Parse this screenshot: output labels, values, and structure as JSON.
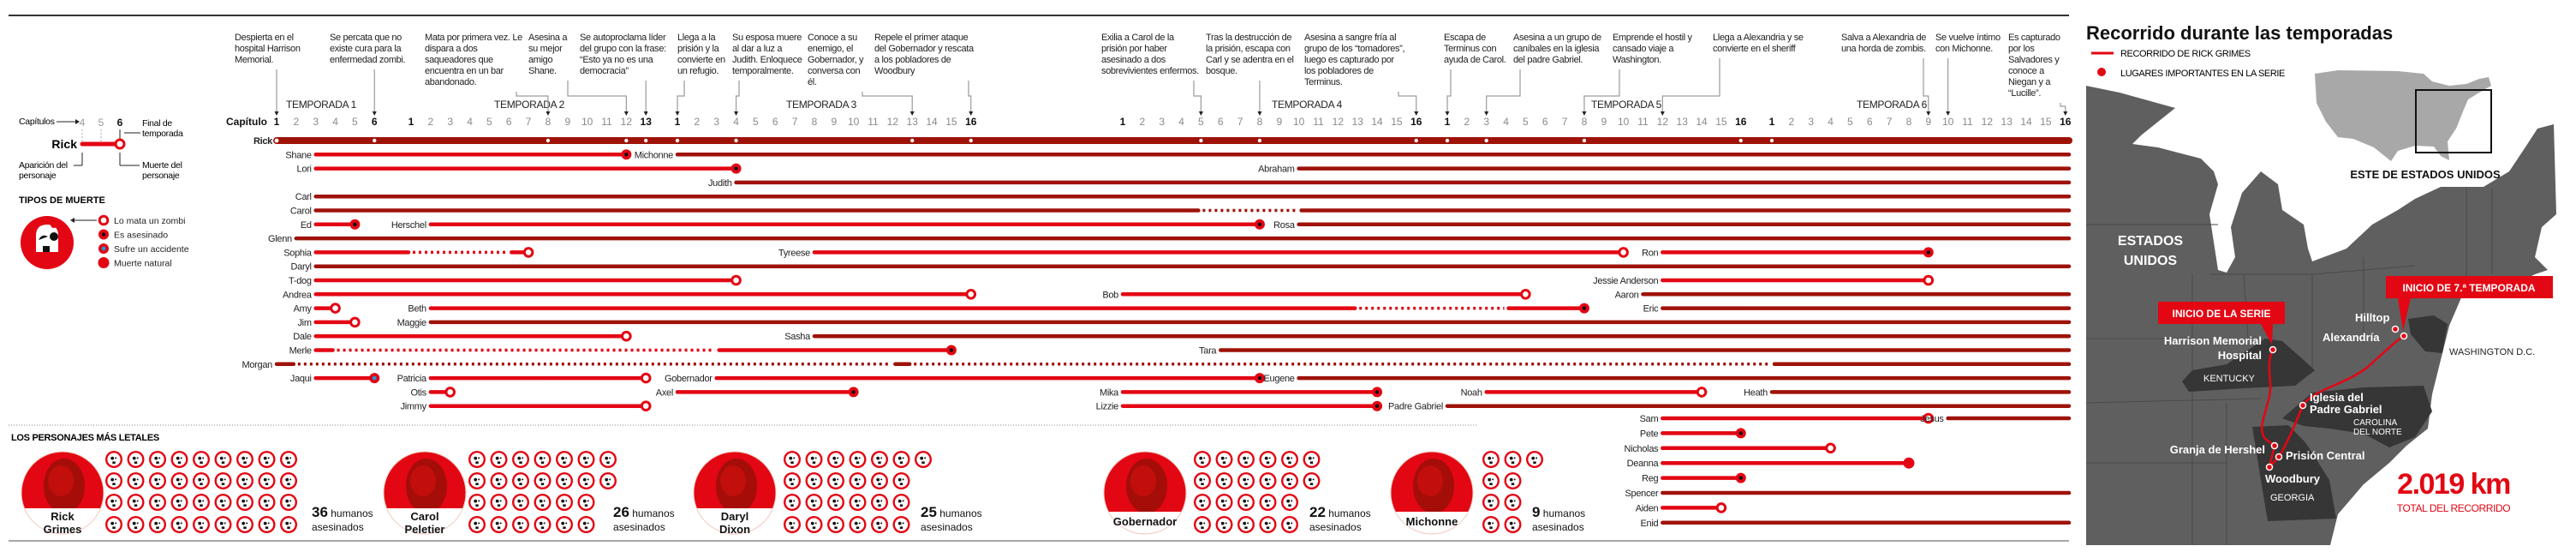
{
  "episode_axis_label": "Capítulo",
  "seasons": [
    {
      "label": "TEMPORADA 1",
      "episodes": 6
    },
    {
      "label": "TEMPORADA 2",
      "episodes": 13
    },
    {
      "label": "TEMPORADA 3",
      "episodes": 16
    },
    {
      "label": "TEMPORADA 4",
      "episodes": 16
    },
    {
      "label": "TEMPORADA 5",
      "episodes": 16
    },
    {
      "label": "TEMPORADA 6",
      "episodes": 16
    }
  ],
  "annotations": [
    {
      "text": "Despierta en el hospital Harrison Memorial.",
      "season": 1,
      "episode": 1
    },
    {
      "text": "Se percata que no existe cura para la enfermedad zombi.",
      "season": 1,
      "episode": 6
    },
    {
      "text": "Mata por primera vez. Le dispara a dos saqueadores que encuentra en un bar abandonado.",
      "season": 2,
      "episode": 8
    },
    {
      "text": "Asesina a su mejor amigo Shane.",
      "season": 2,
      "episode": 12
    },
    {
      "text": "Se autoproclama líder del grupo con la frase: “Esto ya no es una democracia”",
      "season": 2,
      "episode": 13
    },
    {
      "text": "Llega a la prisión y la convierte en un refugio.",
      "season": 3,
      "episode": 1
    },
    {
      "text": "Su esposa muere al dar a luz a Judith. Enloquece temporalmente.",
      "season": 3,
      "episode": 4
    },
    {
      "text": "Conoce a su enemigo, el Gobernador, y conversa con él.",
      "season": 3,
      "episode": 13
    },
    {
      "text": "Repele el primer ataque del Gobernador y rescata a los pobladores de Woodbury",
      "season": 3,
      "episode": 16
    },
    {
      "text": "Exilia a Carol de la prisión por haber asesinado a dos sobrevivientes enfermos.",
      "season": 4,
      "episode": 5
    },
    {
      "text": "Tras la destrucción de la prisión, escapa con Carl y se adentra en el bosque.",
      "season": 4,
      "episode": 8
    },
    {
      "text": "Asesina a sangre fría al grupo de los “tomadores”, luego es capturado por los pobladores de Terminus.",
      "season": 4,
      "episode": 16
    },
    {
      "text": "Escapa de Terminus con ayuda de Carol.",
      "season": 5,
      "episode": 1
    },
    {
      "text": "Asesina a un grupo de caníbales en la iglesia del padre Gabriel.",
      "season": 5,
      "episode": 3
    },
    {
      "text": "Emprende el hostil y cansado viaje a Washington.",
      "season": 5,
      "episode": 8
    },
    {
      "text": "Llega a Alexandria y se convierte en el sheriff",
      "season": 5,
      "episode": 12
    },
    {
      "text": "Salva a Alexandria de una horda de zombis.",
      "season": 6,
      "episode": 9
    },
    {
      "text": "Se vuelve íntimo con Michonne.",
      "season": 6,
      "episode": 10
    },
    {
      "text": "Es capturado por los Salvadores y conoce a Niegan y a “Lucille”.",
      "season": 6,
      "episode": 16
    }
  ],
  "rick_event_dots": [
    [
      1,
      6
    ],
    [
      2,
      8
    ],
    [
      2,
      12
    ],
    [
      2,
      13
    ],
    [
      3,
      1
    ],
    [
      3,
      4
    ],
    [
      3,
      13
    ],
    [
      3,
      16
    ],
    [
      4,
      5
    ],
    [
      4,
      8
    ],
    [
      4,
      16
    ],
    [
      5,
      1
    ],
    [
      5,
      3
    ],
    [
      5,
      8
    ],
    [
      5,
      16
    ],
    [
      6,
      1
    ]
  ],
  "characters": [
    {
      "name": "Rick",
      "row": 0,
      "start": [
        1,
        1
      ],
      "end": null,
      "death": null,
      "main": true
    },
    {
      "name": "Shane",
      "row": 1,
      "start": [
        1,
        3
      ],
      "end": [
        2,
        12
      ],
      "death": "asesinado"
    },
    {
      "name": "Michonne",
      "row": 1,
      "start": [
        3,
        1
      ],
      "end": null,
      "death": null
    },
    {
      "name": "Lori",
      "row": 2,
      "start": [
        1,
        3
      ],
      "end": [
        3,
        4
      ],
      "death": "asesinado"
    },
    {
      "name": "Abraham",
      "row": 2,
      "start": [
        4,
        10
      ],
      "end": null,
      "death": null
    },
    {
      "name": "Judith",
      "row": 3,
      "start": [
        3,
        4
      ],
      "end": null,
      "death": null
    },
    {
      "name": "Carl",
      "row": 4,
      "start": [
        1,
        3
      ],
      "end": null,
      "death": null
    },
    {
      "name": "Carol",
      "row": 5,
      "start": [
        1,
        3
      ],
      "end": null,
      "death": null,
      "gaps": [
        [
          [
            4,
            5
          ],
          [
            4,
            10
          ]
        ]
      ]
    },
    {
      "name": "Ed",
      "row": 6,
      "start": [
        1,
        3
      ],
      "end": [
        1,
        5
      ],
      "death": "asesinado"
    },
    {
      "name": "Herschel",
      "row": 6,
      "start": [
        2,
        2
      ],
      "end": [
        4,
        8
      ],
      "death": "asesinado"
    },
    {
      "name": "Rosa",
      "row": 6,
      "start": [
        4,
        10
      ],
      "end": null,
      "death": null
    },
    {
      "name": "Glenn",
      "row": 7,
      "start": [
        1,
        2
      ],
      "end": null,
      "death": null
    },
    {
      "name": "Sophia",
      "row": 8,
      "start": [
        1,
        3
      ],
      "end": [
        2,
        7
      ],
      "death": "zombi",
      "gaps": [
        [
          [
            2,
            1
          ],
          [
            2,
            6
          ]
        ]
      ]
    },
    {
      "name": "Tyreese",
      "row": 8,
      "start": [
        3,
        8
      ],
      "end": [
        5,
        10
      ],
      "death": "zombi"
    },
    {
      "name": "Ron",
      "row": 8,
      "start": [
        5,
        12
      ],
      "end": [
        6,
        9
      ],
      "death": "asesinado"
    },
    {
      "name": "Daryl",
      "row": 9,
      "start": [
        1,
        3
      ],
      "end": null,
      "death": null
    },
    {
      "name": "T-dog",
      "row": 10,
      "start": [
        1,
        3
      ],
      "end": [
        3,
        4
      ],
      "death": "zombi"
    },
    {
      "name": "Jessie Anderson",
      "row": 10,
      "start": [
        5,
        12
      ],
      "end": [
        6,
        9
      ],
      "death": "zombi"
    },
    {
      "name": "Andrea",
      "row": 11,
      "start": [
        1,
        3
      ],
      "end": [
        3,
        16
      ],
      "death": "zombi"
    },
    {
      "name": "Bob",
      "row": 11,
      "start": [
        4,
        1
      ],
      "end": [
        5,
        5
      ],
      "death": "zombi"
    },
    {
      "name": "Aaron",
      "row": 11,
      "start": [
        5,
        11
      ],
      "end": null,
      "death": null
    },
    {
      "name": "Amy",
      "row": 12,
      "start": [
        1,
        3
      ],
      "end": [
        1,
        4
      ],
      "death": "zombi"
    },
    {
      "name": "Beth",
      "row": 12,
      "start": [
        2,
        2
      ],
      "end": [
        5,
        8
      ],
      "death": "asesinado",
      "gaps": [
        [
          [
            4,
            13
          ],
          [
            5,
            4
          ]
        ]
      ]
    },
    {
      "name": "Eric",
      "row": 12,
      "start": [
        5,
        12
      ],
      "end": null,
      "death": null
    },
    {
      "name": "Jim",
      "row": 13,
      "start": [
        1,
        3
      ],
      "end": [
        1,
        5
      ],
      "death": "zombi"
    },
    {
      "name": "Maggie",
      "row": 13,
      "start": [
        2,
        2
      ],
      "end": null,
      "death": null
    },
    {
      "name": "Dale",
      "row": 14,
      "start": [
        1,
        3
      ],
      "end": [
        2,
        12
      ],
      "death": "zombi"
    },
    {
      "name": "Sasha",
      "row": 14,
      "start": [
        3,
        8
      ],
      "end": null,
      "death": null
    },
    {
      "name": "Merle",
      "row": 15,
      "start": [
        1,
        3
      ],
      "end": [
        3,
        15
      ],
      "death": "asesinado",
      "gaps": [
        [
          [
            1,
            4
          ],
          [
            3,
            3
          ]
        ]
      ]
    },
    {
      "name": "Tara",
      "row": 15,
      "start": [
        4,
        6
      ],
      "end": null,
      "death": null
    },
    {
      "name": "Morgan",
      "row": 16,
      "start": [
        1,
        1
      ],
      "end": null,
      "death": null,
      "gaps": [
        [
          [
            1,
            2
          ],
          [
            3,
            12
          ]
        ],
        [
          [
            3,
            13
          ],
          [
            6,
            1
          ]
        ]
      ]
    },
    {
      "name": "Jaqui",
      "row": 17,
      "start": [
        1,
        3
      ],
      "end": [
        1,
        6
      ],
      "death": "accidente"
    },
    {
      "name": "Patricia",
      "row": 17,
      "start": [
        2,
        2
      ],
      "end": [
        2,
        13
      ],
      "death": "zombi"
    },
    {
      "name": "Gobernador",
      "row": 17,
      "start": [
        3,
        3
      ],
      "end": [
        4,
        8
      ],
      "death": "asesinado"
    },
    {
      "name": "Eugene",
      "row": 17,
      "start": [
        4,
        10
      ],
      "end": null,
      "death": null
    },
    {
      "name": "Otis",
      "row": 18,
      "start": [
        2,
        2
      ],
      "end": [
        2,
        3
      ],
      "death": "zombi"
    },
    {
      "name": "Axel",
      "row": 18,
      "start": [
        3,
        1
      ],
      "end": [
        3,
        10
      ],
      "death": "asesinado"
    },
    {
      "name": "Mika",
      "row": 18,
      "start": [
        4,
        1
      ],
      "end": [
        4,
        14
      ],
      "death": "asesinado"
    },
    {
      "name": "Noah",
      "row": 18,
      "start": [
        5,
        3
      ],
      "end": [
        5,
        14
      ],
      "death": "zombi"
    },
    {
      "name": "Heath",
      "row": 18,
      "start": [
        6,
        1
      ],
      "end": null,
      "death": null
    },
    {
      "name": "Jimmy",
      "row": 19,
      "start": [
        2,
        2
      ],
      "end": [
        2,
        13
      ],
      "death": "zombi"
    },
    {
      "name": "Lizzie",
      "row": 19,
      "start": [
        4,
        1
      ],
      "end": [
        4,
        14
      ],
      "death": "asesinado"
    },
    {
      "name": "Padre Gabriel",
      "row": 19,
      "start": [
        5,
        1
      ],
      "end": null,
      "death": null
    },
    {
      "name": "Sam",
      "row": 20,
      "start": [
        5,
        12
      ],
      "end": [
        6,
        9
      ],
      "death": "zombi"
    },
    {
      "name": "Jesus",
      "row": 20,
      "start": [
        6,
        10
      ],
      "end": null,
      "death": null
    },
    {
      "name": "Pete",
      "row": 21,
      "start": [
        5,
        12
      ],
      "end": [
        5,
        16
      ],
      "death": "asesinado"
    },
    {
      "name": "Nicholas",
      "row": 22,
      "start": [
        5,
        12
      ],
      "end": [
        6,
        4
      ],
      "death": "zombi"
    },
    {
      "name": "Deanna",
      "row": 23,
      "start": [
        5,
        12
      ],
      "end": [
        6,
        8
      ],
      "death": "natural"
    },
    {
      "name": "Reg",
      "row": 24,
      "start": [
        5,
        12
      ],
      "end": [
        5,
        16
      ],
      "death": "asesinado"
    },
    {
      "name": "Spencer",
      "row": 25,
      "start": [
        5,
        12
      ],
      "end": null,
      "death": null
    },
    {
      "name": "Aiden",
      "row": 26,
      "start": [
        5,
        12
      ],
      "end": [
        5,
        15
      ],
      "death": "zombi"
    },
    {
      "name": "Enid",
      "row": 27,
      "start": [
        5,
        12
      ],
      "end": null,
      "death": null
    }
  ],
  "legend": {
    "chapters": "Capítulos",
    "sample_name": "Rick",
    "sample_eps": [
      "4",
      "5",
      "6"
    ],
    "season_end_1": "Final de",
    "season_end_2": "temporada",
    "appearance_1": "Aparición del",
    "appearance_2": "personaje",
    "death_1": "Muerte del",
    "death_2": "personaje",
    "death_types_title": "TIPOS DE MUERTE",
    "death_types": [
      {
        "key": "zombi",
        "label": "Lo mata un zombi"
      },
      {
        "key": "asesinado",
        "label": "Es asesinado"
      },
      {
        "key": "accidente",
        "label": "Sufre un accidente"
      },
      {
        "key": "natural",
        "label": "Muerte natural"
      }
    ]
  },
  "lethal": {
    "title": "LOS PERSONAJES MÁS LETALES",
    "unit_1": "humanos",
    "unit_2": "asesinados",
    "characters": [
      {
        "name_lines": [
          "Rick",
          "Grimes"
        ],
        "kills": 36
      },
      {
        "name_lines": [
          "Carol",
          "Peletier"
        ],
        "kills": 26
      },
      {
        "name_lines": [
          "Daryl",
          "Dixon"
        ],
        "kills": 25
      },
      {
        "name_lines": [
          "Gobernador"
        ],
        "kills": 22
      },
      {
        "name_lines": [
          "Michonne"
        ],
        "kills": 9
      }
    ]
  },
  "map": {
    "title": "Recorrido durante las temporadas",
    "legend_route": "RECORRIDO DE RICK GRIMES",
    "legend_places": "LUGARES IMPORTANTES EN LA SERIE",
    "inset_label": "ESTE DE ESTADOS UNIDOS",
    "country_1": "ESTADOS",
    "country_2": "UNIDOS",
    "start_series": "INICIO DE LA SERIE",
    "start_s7": "INICIO DE 7.ª TEMPORADA",
    "places": {
      "harrison_1": "Harrison Memorial",
      "harrison_2": "Hospital",
      "hilltop": "Hilltop",
      "alexandria": "Alexandría",
      "iglesia_1": "Iglesia del",
      "iglesia_2": "Padre Gabriel",
      "granja": "Granja de Hershel",
      "prision": "Prisión Central",
      "woodbury": "Woodbury"
    },
    "states": {
      "kentucky": "KENTUCKY",
      "carolina_1": "CAROLINA",
      "carolina_2": "DEL NORTE",
      "georgia": "GEORGIA",
      "washington": "WASHINGTON D.C."
    },
    "distance": "2.019 km",
    "distance_label": "TOTAL DEL RECORRIDO"
  },
  "colors": {
    "dead_line": "#e30613",
    "alive_line": "#9e1208",
    "accident": "#1b9ad6",
    "map_land": "#5f5f60",
    "map_highlight": "#363636",
    "inset_land": "#a8a8a8"
  }
}
